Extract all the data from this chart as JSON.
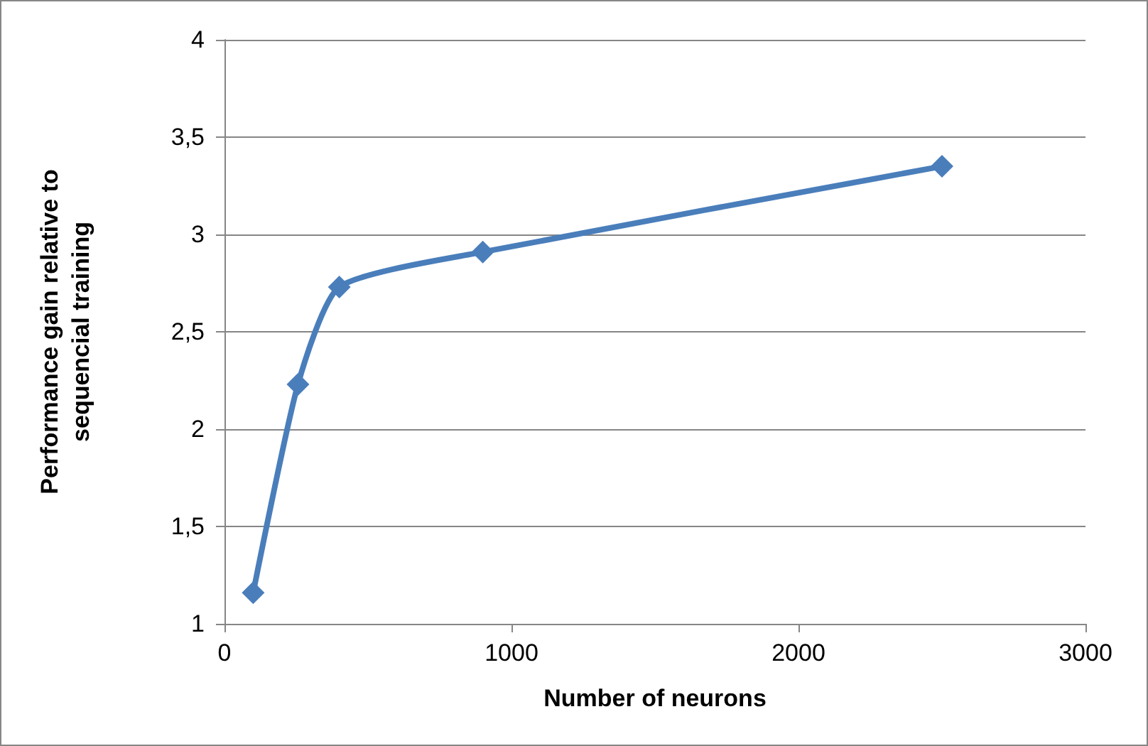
{
  "chart_data": {
    "type": "line",
    "xlabel": "Number of neurons",
    "ylabel": "Performance gain relative to\nsequencial training",
    "x": [
      100,
      256,
      400,
      900,
      2500
    ],
    "series": [
      {
        "color": "#4a7ebb",
        "values": [
          1.16,
          2.23,
          2.73,
          2.91,
          3.35
        ]
      }
    ],
    "xlim": [
      0,
      3000
    ],
    "xticks": [
      0,
      1000,
      2000,
      3000
    ],
    "ylim": [
      1,
      4
    ],
    "yticks": [
      1,
      {
        "value": 1.5,
        "label": "1,5"
      },
      2,
      {
        "value": 2.5,
        "label": "2,5"
      },
      3,
      {
        "value": 3.5,
        "label": "3,5"
      },
      4
    ],
    "grid": "y",
    "marker": "diamond",
    "line_style": "solid"
  }
}
